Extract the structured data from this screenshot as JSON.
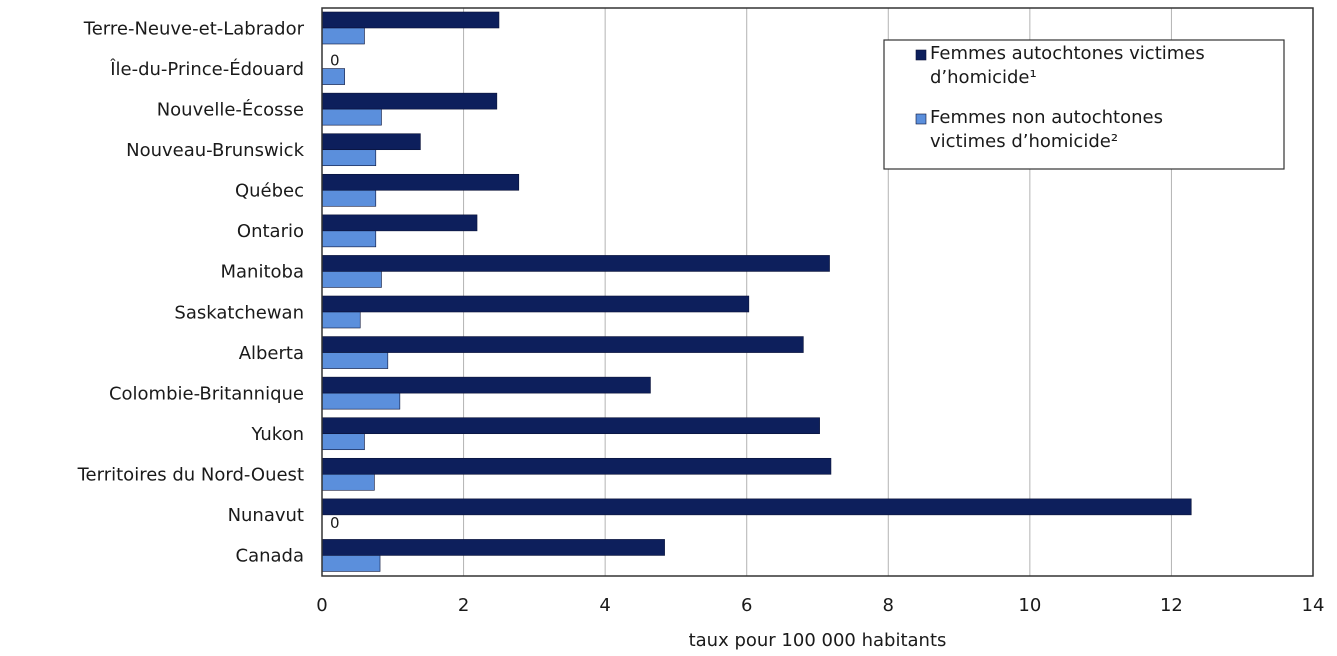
{
  "chart_data": {
    "type": "bar",
    "orientation": "horizontal",
    "title": "",
    "xlabel": "taux pour 100 000 habitants",
    "ylabel": "",
    "xlim": [
      0,
      14
    ],
    "xticks": [
      0,
      2,
      4,
      6,
      8,
      10,
      12,
      14
    ],
    "grid": "vertical",
    "legend_position": "top-right",
    "categories": [
      "Terre-Neuve-et-Labrador",
      "Île-du-Prince-Édouard",
      "Nouvelle-Écosse",
      "Nouveau-Brunswick",
      "Québec",
      "Ontario",
      "Manitoba",
      "Saskatchewan",
      "Alberta",
      "Colombie-Britannique",
      "Yukon",
      "Territoires du Nord-Ouest",
      "Nunavut",
      "Canada"
    ],
    "series": [
      {
        "name_lines": [
          "Femmes autochtones victimes",
          "d’homicide¹"
        ],
        "color": "#0d1f5c",
        "values": [
          2.5,
          0,
          2.47,
          1.39,
          2.78,
          2.19,
          7.17,
          6.03,
          6.8,
          4.64,
          7.03,
          7.19,
          12.28,
          4.84
        ]
      },
      {
        "name_lines": [
          "Femmes non autochtones",
          "victimes d’homicide²"
        ],
        "color": "#5b8fdc",
        "values": [
          0.6,
          0.32,
          0.84,
          0.76,
          0.76,
          0.76,
          0.84,
          0.54,
          0.93,
          1.1,
          0.6,
          0.74,
          0,
          0.82
        ]
      }
    ],
    "zero_value_label": "0"
  }
}
